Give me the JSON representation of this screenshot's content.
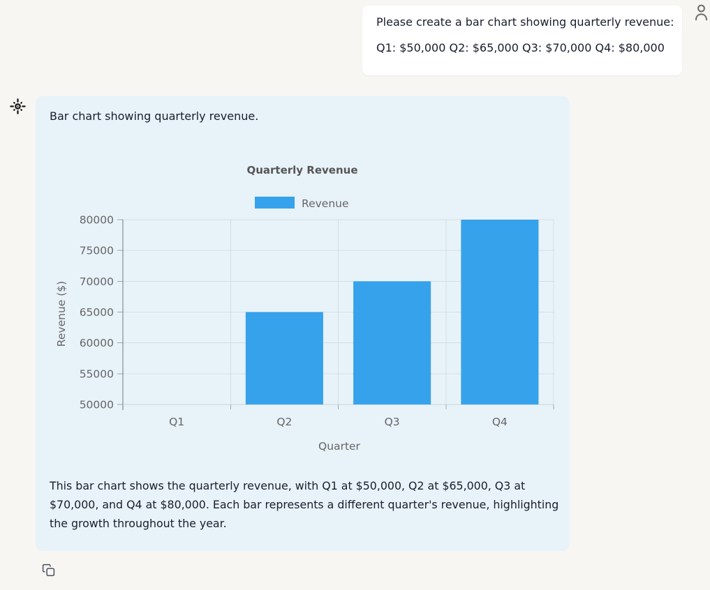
{
  "user_message": {
    "lines": [
      "Please create a bar chart showing quarterly revenue:",
      "Q1: $50,000 Q2: $65,000 Q3: $70,000 Q4: $80,000"
    ]
  },
  "assistant_message": {
    "intro": "Bar chart showing quarterly revenue.",
    "description_lines": [
      "This bar chart shows the quarterly revenue, with Q1 at $50,000, Q2 at $65,000, Q3 at",
      "$70,000, and Q4 at $80,000. Each bar represents a different quarter's revenue, highlighting",
      "the growth throughout the year."
    ]
  },
  "chart_data": {
    "type": "bar",
    "title": "Quarterly Revenue",
    "categories": [
      "Q1",
      "Q2",
      "Q3",
      "Q4"
    ],
    "series": [
      {
        "name": "Revenue",
        "values": [
          50000,
          65000,
          70000,
          80000
        ]
      }
    ],
    "xlabel": "Quarter",
    "ylabel": "Revenue ($)",
    "ylim": [
      50000,
      80000
    ],
    "ytick_step": 5000,
    "legend_position": "top",
    "grid": true,
    "bar_color": "#36a2eb",
    "grid_color": "#d4dde4",
    "tick_color": "#9aa6af",
    "axis_color": "#6b7680",
    "xaxis_border_color": "#c6d1d9",
    "text_color": "#666666",
    "title_color": "#565656"
  },
  "colors": {
    "page_bg": "#f7f6f2",
    "card_bg": "#e8f2f9",
    "bubble_bg": "#ffffff",
    "text": "#191d2b"
  }
}
